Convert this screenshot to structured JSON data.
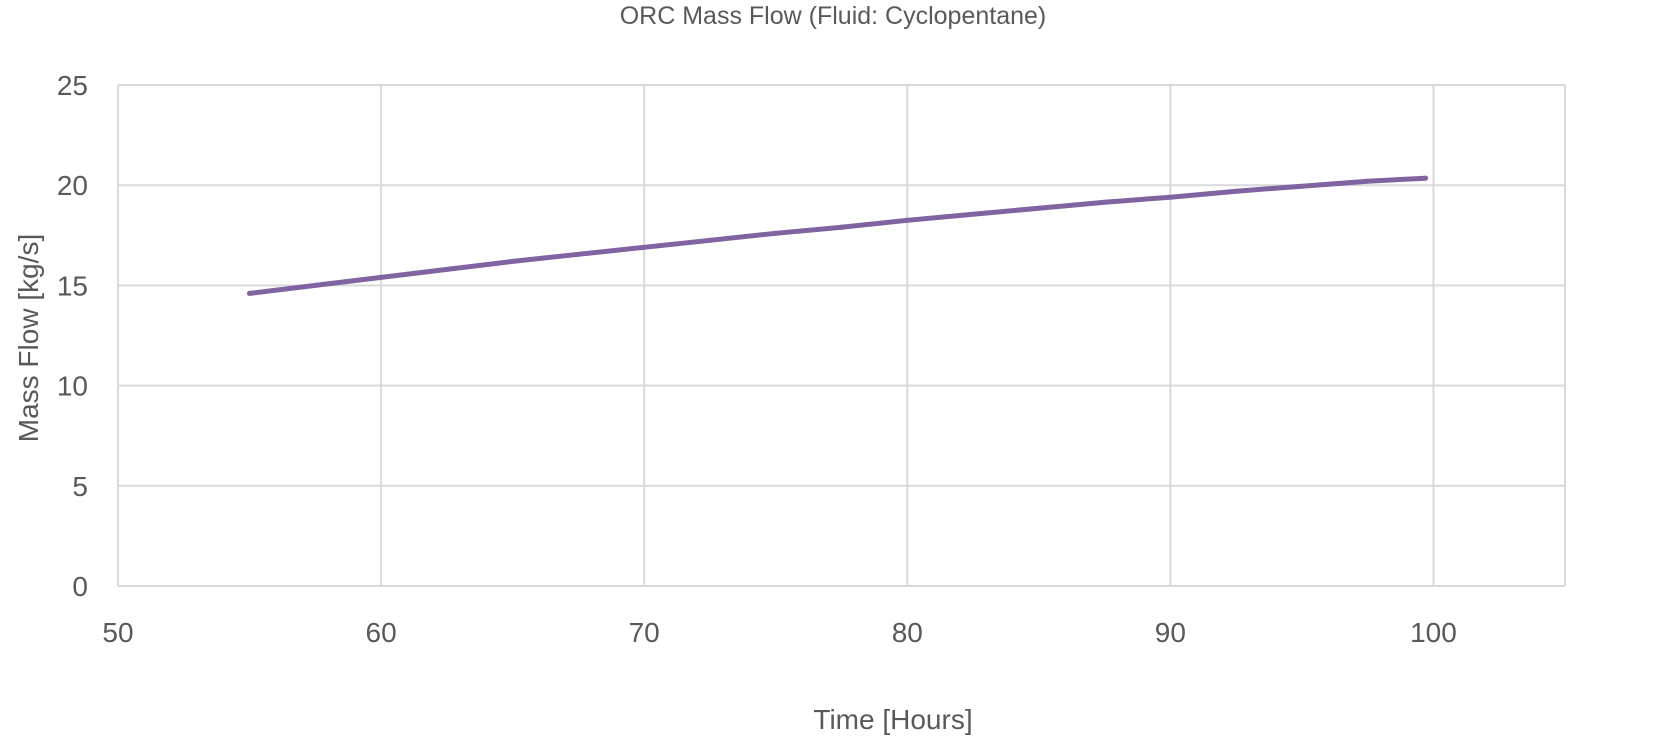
{
  "chart_data": {
    "type": "line",
    "title": "ORC Mass Flow (Fluid: Cyclopentane)",
    "xlabel": "Time [Hours]",
    "ylabel": "Mass Flow [kg/s]",
    "xlim": [
      50,
      105
    ],
    "ylim": [
      0,
      25
    ],
    "xticks": [
      50,
      60,
      70,
      80,
      90,
      100
    ],
    "yticks": [
      0,
      5,
      10,
      15,
      20,
      25
    ],
    "grid": true,
    "legend": "none",
    "series": [
      {
        "color": "#8064A2",
        "x": [
          55,
          57.5,
          60,
          62.5,
          65,
          67.5,
          70,
          72.5,
          75,
          77.5,
          80,
          82.5,
          85,
          87.5,
          90,
          92.5,
          95,
          97.5,
          99.7
        ],
        "y": [
          14.6,
          15.0,
          15.4,
          15.8,
          16.2,
          16.55,
          16.9,
          17.25,
          17.6,
          17.9,
          18.25,
          18.55,
          18.85,
          19.15,
          19.4,
          19.7,
          19.95,
          20.2,
          20.35
        ]
      }
    ]
  }
}
